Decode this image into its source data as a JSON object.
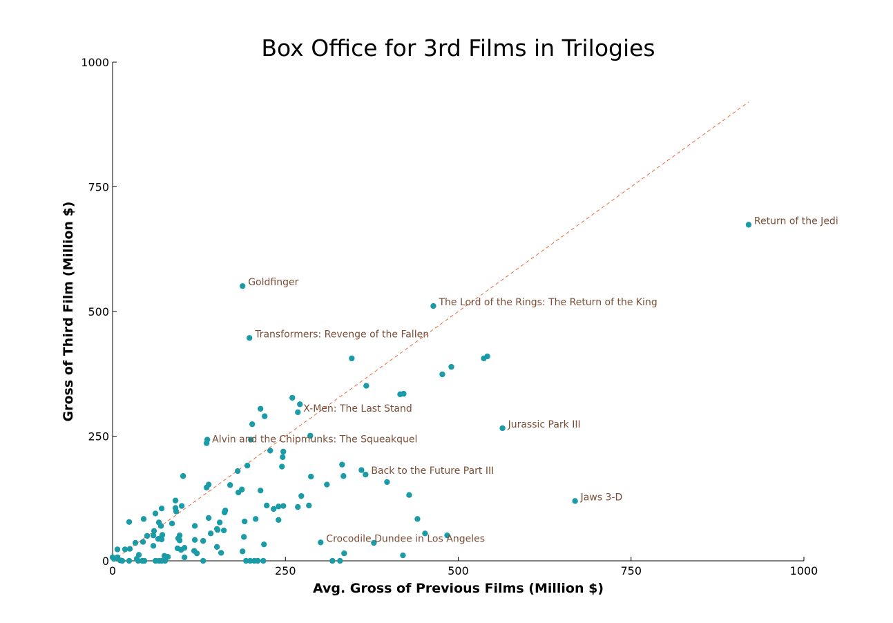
{
  "chart_data": {
    "type": "scatter",
    "title": "Box Office for 3rd Films in Trilogies",
    "xlabel": "Avg. Gross of Previous Films (Million $)",
    "ylabel": "Gross of Third Film (Million $)",
    "xlim": [
      0,
      1000
    ],
    "ylim": [
      0,
      1000
    ],
    "xticks": [
      0,
      250,
      500,
      750,
      1000
    ],
    "yticks": [
      0,
      250,
      500,
      750,
      1000
    ],
    "grid": false,
    "colors": {
      "points": "#1a9ba6",
      "reference_line": "#e8683a",
      "annotation": "#7a4d35"
    },
    "reference_line": {
      "style": "dashed",
      "x": [
        0,
        920
      ],
      "y": [
        0,
        920
      ]
    },
    "annotations": [
      {
        "label": "Return of the Jedi",
        "x": 920,
        "y": 674
      },
      {
        "label": "Goldfinger",
        "x": 188,
        "y": 551
      },
      {
        "label": "The Lord of the Rings: The Return of the King",
        "x": 464,
        "y": 511
      },
      {
        "label": "Transformers: Revenge of the Fallen",
        "x": 198,
        "y": 447
      },
      {
        "label": "X-Men: The Last Stand",
        "x": 268,
        "y": 298
      },
      {
        "label": "Jurassic Park III",
        "x": 564,
        "y": 266
      },
      {
        "label": "Alvin and the Chipmunks: The Squeakquel",
        "x": 136,
        "y": 236
      },
      {
        "label": "Back to the Future Part III",
        "x": 366,
        "y": 173
      },
      {
        "label": "Jaws 3-D",
        "x": 669,
        "y": 120
      },
      {
        "label": "Crocodile Dundee in Los Angeles",
        "x": 301,
        "y": 37
      }
    ],
    "points": [
      [
        920,
        674
      ],
      [
        188,
        551
      ],
      [
        464,
        511
      ],
      [
        198,
        447
      ],
      [
        268,
        298
      ],
      [
        564,
        266
      ],
      [
        136,
        236
      ],
      [
        366,
        173
      ],
      [
        669,
        120
      ],
      [
        301,
        37
      ],
      [
        346,
        406
      ],
      [
        542,
        410
      ],
      [
        537,
        406
      ],
      [
        490,
        389
      ],
      [
        477,
        374
      ],
      [
        367,
        351
      ],
      [
        421,
        335
      ],
      [
        416,
        334
      ],
      [
        260,
        327
      ],
      [
        271,
        314
      ],
      [
        214,
        305
      ],
      [
        220,
        290
      ],
      [
        202,
        274
      ],
      [
        286,
        251
      ],
      [
        137,
        243
      ],
      [
        200,
        243
      ],
      [
        228,
        221
      ],
      [
        247,
        219
      ],
      [
        246,
        208
      ],
      [
        245,
        189
      ],
      [
        195,
        191
      ],
      [
        181,
        180
      ],
      [
        332,
        193
      ],
      [
        360,
        182
      ],
      [
        287,
        169
      ],
      [
        334,
        170
      ],
      [
        102,
        170
      ],
      [
        397,
        158
      ],
      [
        139,
        153
      ],
      [
        170,
        152
      ],
      [
        310,
        153
      ],
      [
        136,
        147
      ],
      [
        187,
        143
      ],
      [
        214,
        141
      ],
      [
        182,
        137
      ],
      [
        429,
        132
      ],
      [
        273,
        130
      ],
      [
        91,
        121
      ],
      [
        223,
        111
      ],
      [
        247,
        110
      ],
      [
        268,
        108
      ],
      [
        284,
        111
      ],
      [
        240,
        109
      ],
      [
        233,
        104
      ],
      [
        100,
        110
      ],
      [
        91,
        106
      ],
      [
        71,
        105
      ],
      [
        92,
        99
      ],
      [
        163,
        101
      ],
      [
        162,
        97
      ],
      [
        62,
        95
      ],
      [
        139,
        86
      ],
      [
        45,
        84
      ],
      [
        441,
        84
      ],
      [
        207,
        84
      ],
      [
        240,
        82
      ],
      [
        155,
        77
      ],
      [
        191,
        79
      ],
      [
        24,
        78
      ],
      [
        67,
        77
      ],
      [
        86,
        75
      ],
      [
        70,
        70
      ],
      [
        119,
        70
      ],
      [
        151,
        64
      ],
      [
        152,
        62
      ],
      [
        161,
        61
      ],
      [
        60,
        60
      ],
      [
        142,
        55
      ],
      [
        452,
        55
      ],
      [
        50,
        50
      ],
      [
        72,
        52
      ],
      [
        59,
        51
      ],
      [
        97,
        51
      ],
      [
        484,
        51
      ],
      [
        190,
        48
      ],
      [
        70,
        46
      ],
      [
        71,
        43
      ],
      [
        66,
        44
      ],
      [
        95,
        45
      ],
      [
        97,
        41
      ],
      [
        119,
        42
      ],
      [
        131,
        40
      ],
      [
        44,
        38
      ],
      [
        33,
        36
      ],
      [
        378,
        36
      ],
      [
        219,
        33
      ],
      [
        59,
        30
      ],
      [
        151,
        28
      ],
      [
        104,
        26
      ],
      [
        94,
        25
      ],
      [
        99,
        22
      ],
      [
        7,
        23
      ],
      [
        18,
        23
      ],
      [
        25,
        24
      ],
      [
        118,
        20
      ],
      [
        122,
        15
      ],
      [
        188,
        19
      ],
      [
        157,
        16
      ],
      [
        335,
        15
      ],
      [
        38,
        12
      ],
      [
        75,
        10
      ],
      [
        80,
        8
      ],
      [
        420,
        11
      ],
      [
        104,
        7
      ],
      [
        7,
        7
      ],
      [
        0,
        7
      ],
      [
        2,
        4
      ],
      [
        35,
        4
      ],
      [
        11,
        1
      ],
      [
        14,
        0
      ],
      [
        24,
        0
      ],
      [
        37,
        0
      ],
      [
        43,
        0
      ],
      [
        46,
        0
      ],
      [
        62,
        0
      ],
      [
        67,
        0
      ],
      [
        71,
        0
      ],
      [
        76,
        0
      ],
      [
        131,
        0
      ],
      [
        193,
        0
      ],
      [
        199,
        0
      ],
      [
        205,
        0
      ],
      [
        210,
        0
      ],
      [
        218,
        0
      ],
      [
        318,
        0
      ],
      [
        329,
        0
      ]
    ]
  }
}
